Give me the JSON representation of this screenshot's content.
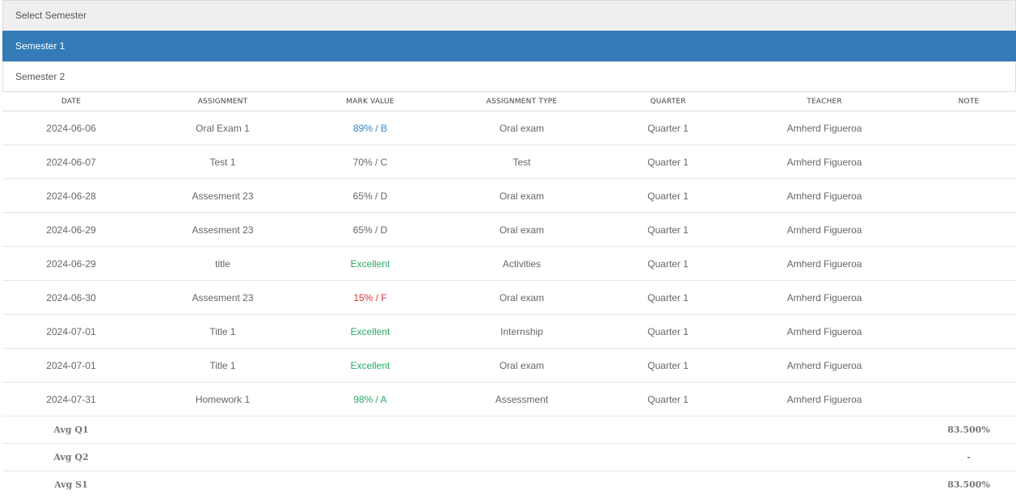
{
  "semester_selector": {
    "header": "Select Semester",
    "items": [
      {
        "label": "Semester 1",
        "active": true
      },
      {
        "label": "Semester 2",
        "active": false
      }
    ]
  },
  "colors": {
    "active": "#337ab7",
    "mark_blue": "#2f86c8",
    "mark_green": "#27a866",
    "mark_red": "#d9342b"
  },
  "table": {
    "columns": [
      "DATE",
      "ASSIGNMENT",
      "MARK VALUE",
      "ASSIGNMENT TYPE",
      "QUARTER",
      "TEACHER",
      "NOTE"
    ],
    "rows": [
      {
        "date": "2024-06-06",
        "assignment": "Oral Exam 1",
        "mark": "89% / B",
        "mark_color": "blue",
        "type": "Oral exam",
        "quarter": "Quarter 1",
        "teacher": "Amherd Figueroa",
        "note": ""
      },
      {
        "date": "2024-06-07",
        "assignment": "Test 1",
        "mark": "70% / C",
        "mark_color": "gray",
        "type": "Test",
        "quarter": "Quarter 1",
        "teacher": "Amherd Figueroa",
        "note": ""
      },
      {
        "date": "2024-06-28",
        "assignment": "Assesment 23",
        "mark": "65% / D",
        "mark_color": "gray",
        "type": "Oral exam",
        "quarter": "Quarter 1",
        "teacher": "Amherd Figueroa",
        "note": ""
      },
      {
        "date": "2024-06-29",
        "assignment": "Assesment 23",
        "mark": "65% / D",
        "mark_color": "gray",
        "type": "Oral exam",
        "quarter": "Quarter 1",
        "teacher": "Amherd Figueroa",
        "note": ""
      },
      {
        "date": "2024-06-29",
        "assignment": "title",
        "mark": "Excellent",
        "mark_color": "green",
        "type": "Activities",
        "quarter": "Quarter 1",
        "teacher": "Amherd Figueroa",
        "note": ""
      },
      {
        "date": "2024-06-30",
        "assignment": "Assesment 23",
        "mark": "15% / F",
        "mark_color": "red",
        "type": "Oral exam",
        "quarter": "Quarter 1",
        "teacher": "Amherd Figueroa",
        "note": ""
      },
      {
        "date": "2024-07-01",
        "assignment": "Title 1",
        "mark": "Excellent",
        "mark_color": "green",
        "type": "Internship",
        "quarter": "Quarter 1",
        "teacher": "Amherd Figueroa",
        "note": ""
      },
      {
        "date": "2024-07-01",
        "assignment": "Title 1",
        "mark": "Excellent",
        "mark_color": "green",
        "type": "Oral exam",
        "quarter": "Quarter 1",
        "teacher": "Amherd Figueroa",
        "note": ""
      },
      {
        "date": "2024-07-31",
        "assignment": "Homework 1",
        "mark": "98% / A",
        "mark_color": "green",
        "type": "Assessment",
        "quarter": "Quarter 1",
        "teacher": "Amherd Figueroa",
        "note": ""
      }
    ],
    "averages": [
      {
        "label": "Avg Q1",
        "value": "83.500%"
      },
      {
        "label": "Avg Q2",
        "value": "-"
      },
      {
        "label": "Avg S1",
        "value": "83.500%"
      }
    ]
  }
}
